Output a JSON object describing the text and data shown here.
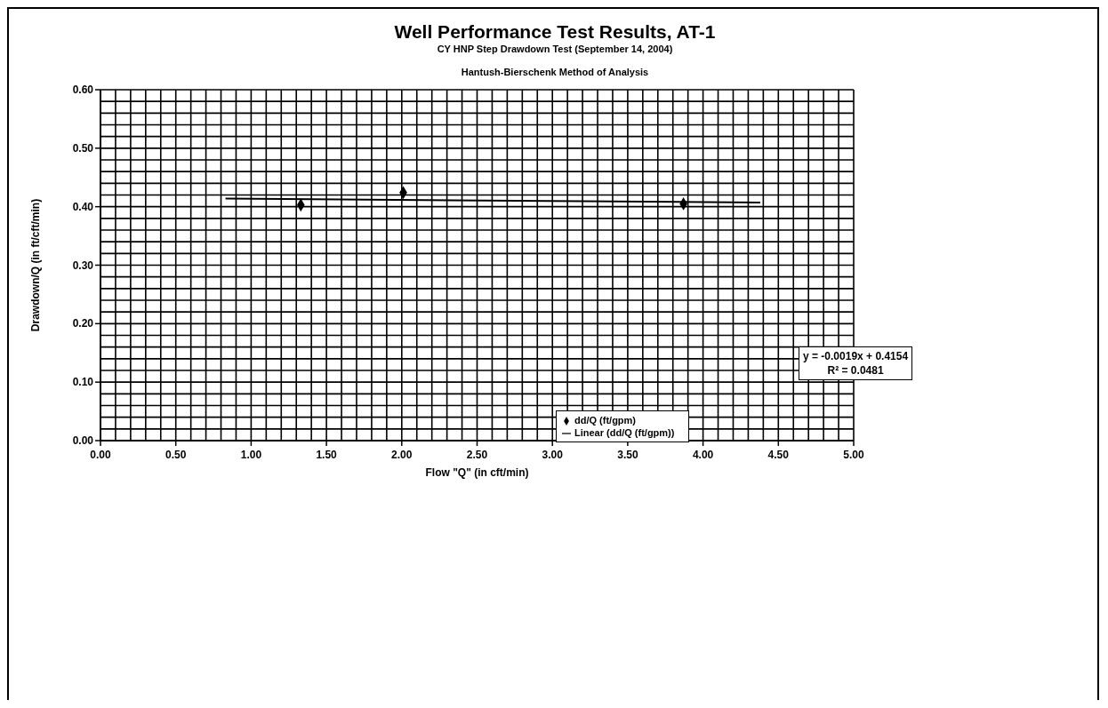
{
  "chart_data": {
    "type": "scatter",
    "title": "Well Performance Test Results, AT-1",
    "subtitle": "CY HNP Step Drawdown Test (September 14, 2004)\nHantush-Bierschenk Method of Analysis",
    "xlabel": "Flow \"Q\" (in cft/min)",
    "ylabel": "Drawdown/Q (in ft/cft/min)",
    "annotations": [
      "y = -0.0019x + 0.4154",
      "R² = 0.0481"
    ],
    "series": [
      {
        "name": "dd/Q (ft/gpm)",
        "color": "#000000",
        "marker": "diamond",
        "x": [
          1.33,
          2.01,
          3.87
        ],
        "values": [
          0.403,
          0.424,
          0.405
        ]
      },
      {
        "name": "Linear (dd/Q (ft/gpm))",
        "type": "line",
        "color": "#000000",
        "marker": "none",
        "line_style": "solid",
        "x": [
          0.83,
          4.38
        ],
        "values": [
          0.414,
          0.407
        ]
      }
    ],
    "xlim": [
      0,
      5
    ],
    "ylim": [
      0,
      0.6
    ],
    "xticks": [
      {
        "value": 0,
        "label": "0.00"
      },
      {
        "value": 0.1,
        "label": null
      },
      {
        "value": 0.2,
        "label": null
      },
      {
        "value": 0.3,
        "label": null
      },
      {
        "value": 0.4,
        "label": null
      },
      {
        "value": 0.5,
        "label": "0.50"
      },
      {
        "value": 0.6,
        "label": null
      },
      {
        "value": 0.7,
        "label": null
      },
      {
        "value": 0.8,
        "label": null
      },
      {
        "value": 0.9,
        "label": null
      },
      {
        "value": 1,
        "label": "1.00"
      },
      {
        "value": 1.1,
        "label": null
      },
      {
        "value": 1.2,
        "label": null
      },
      {
        "value": 1.3,
        "label": null
      },
      {
        "value": 1.4,
        "label": null
      },
      {
        "value": 1.5,
        "label": "1.50"
      },
      {
        "value": 1.6,
        "label": null
      },
      {
        "value": 1.7,
        "label": null
      },
      {
        "value": 1.8,
        "label": null
      },
      {
        "value": 1.9,
        "label": null
      },
      {
        "value": 2,
        "label": "2.00"
      },
      {
        "value": 2.1,
        "label": null
      },
      {
        "value": 2.2,
        "label": null
      },
      {
        "value": 2.3,
        "label": null
      },
      {
        "value": 2.4,
        "label": null
      },
      {
        "value": 2.5,
        "label": "2.50"
      },
      {
        "value": 2.6,
        "label": null
      },
      {
        "value": 2.7,
        "label": null
      },
      {
        "value": 2.8,
        "label": null
      },
      {
        "value": 2.9,
        "label": null
      },
      {
        "value": 3,
        "label": "3.00"
      },
      {
        "value": 3.1,
        "label": null
      },
      {
        "value": 3.2,
        "label": null
      },
      {
        "value": 3.3,
        "label": null
      },
      {
        "value": 3.4,
        "label": null
      },
      {
        "value": 3.5,
        "label": "3.50"
      },
      {
        "value": 3.6,
        "label": null
      },
      {
        "value": 3.7,
        "label": null
      },
      {
        "value": 3.8,
        "label": null
      },
      {
        "value": 3.9,
        "label": null
      },
      {
        "value": 4,
        "label": "4.00"
      },
      {
        "value": 4.1,
        "label": null
      },
      {
        "value": 4.2,
        "label": null
      },
      {
        "value": 4.3,
        "label": null
      },
      {
        "value": 4.4,
        "label": null
      },
      {
        "value": 4.5,
        "label": "4.50"
      },
      {
        "value": 4.6,
        "label": null
      },
      {
        "value": 4.7,
        "label": null
      },
      {
        "value": 4.8,
        "label": null
      },
      {
        "value": 4.9,
        "label": null
      },
      {
        "value": 5,
        "label": "5.00"
      }
    ],
    "yticks": [
      {
        "value": 0,
        "label": "0.00"
      },
      {
        "value": 0.02,
        "label": null
      },
      {
        "value": 0.04,
        "label": null
      },
      {
        "value": 0.06,
        "label": null
      },
      {
        "value": 0.08,
        "label": null
      },
      {
        "value": 0.1,
        "label": "0.10"
      },
      {
        "value": 0.12,
        "label": null
      },
      {
        "value": 0.14,
        "label": null
      },
      {
        "value": 0.16,
        "label": null
      },
      {
        "value": 0.18,
        "label": null
      },
      {
        "value": 0.2,
        "label": "0.20"
      },
      {
        "value": 0.22,
        "label": null
      },
      {
        "value": 0.24,
        "label": null
      },
      {
        "value": 0.26,
        "label": null
      },
      {
        "value": 0.28,
        "label": null
      },
      {
        "value": 0.3,
        "label": "0.30"
      },
      {
        "value": 0.32,
        "label": null
      },
      {
        "value": 0.34,
        "label": null
      },
      {
        "value": 0.36,
        "label": null
      },
      {
        "value": 0.38,
        "label": null
      },
      {
        "value": 0.4,
        "label": "0.40"
      },
      {
        "value": 0.42,
        "label": null
      },
      {
        "value": 0.44,
        "label": null
      },
      {
        "value": 0.46,
        "label": null
      },
      {
        "value": 0.48,
        "label": null
      },
      {
        "value": 0.5,
        "label": "0.50"
      },
      {
        "value": 0.52,
        "label": null
      },
      {
        "value": 0.54,
        "label": null
      },
      {
        "value": 0.56,
        "label": null
      },
      {
        "value": 0.58,
        "label": null
      },
      {
        "value": 0.6,
        "label": "0.60"
      }
    ],
    "grid": true,
    "legend": "bottom"
  }
}
